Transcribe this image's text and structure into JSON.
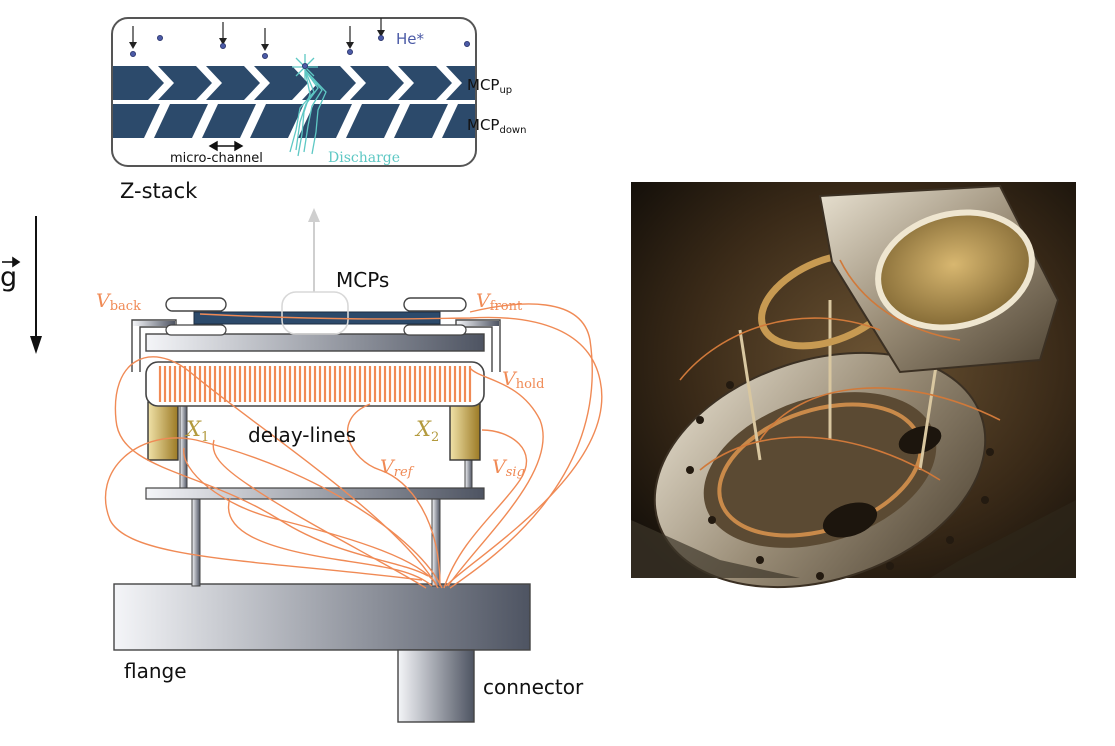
{
  "zstack": {
    "title": "Z-stack",
    "he_label": "He*",
    "mcp_up_main": "MCP",
    "mcp_up_sub": "up",
    "mcp_down_main": "MCP",
    "mcp_down_sub": "down",
    "microchannel_label": "micro-channel",
    "discharge_label": "Discharge"
  },
  "gravity": {
    "symbol": "g"
  },
  "detector": {
    "mcps_label": "MCPs",
    "delay_lines_label": "delay-lines",
    "flange_label": "flange",
    "connector_label": "connector",
    "x1_main": "X",
    "x1_sub": "1",
    "x2_main": "X",
    "x2_sub": "2",
    "v_back_main": "V",
    "v_back_sub": "back",
    "v_front_main": "V",
    "v_front_sub": "front",
    "v_hold_main": "V",
    "v_hold_sub": "hold",
    "v_ref_main": "V",
    "v_ref_sub": "ref",
    "v_sig_main": "V",
    "v_sig_sub": "sig"
  },
  "colors": {
    "mcp_plate": "#2c4a6b",
    "wire": "#f08a55",
    "discharge": "#5ec8c4",
    "he_dot": "#4b5aa6",
    "anode": "#c9a94a"
  }
}
